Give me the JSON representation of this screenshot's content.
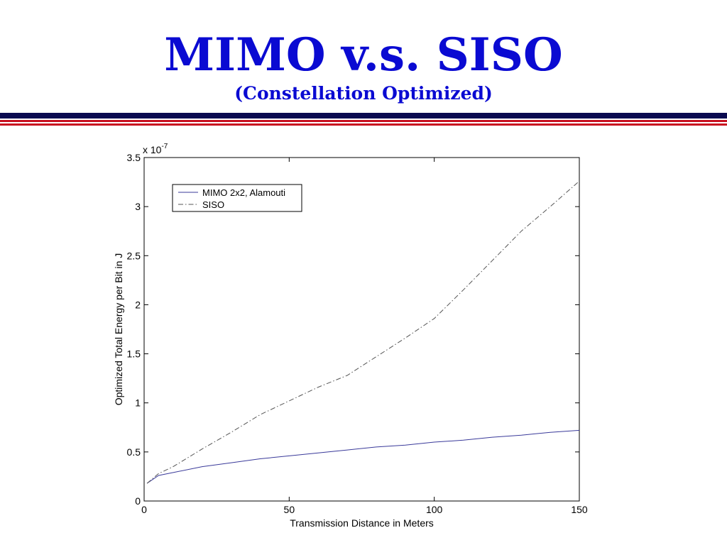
{
  "slide": {
    "title": "MIMO v.s. SISO",
    "subtitle": "(Constellation Optimized)"
  },
  "colors": {
    "title": "#0a0ad2",
    "rule_navy": "#0a0a50",
    "rule_red": "#c81020",
    "mimo_line": "#3a3a9a",
    "siso_line": "#555555"
  },
  "chart_data": {
    "type": "line",
    "xlabel": "Transmission Distance in Meters",
    "ylabel": "Optimized Total Energy per Bit in J",
    "exponent_base": "x 10",
    "exponent_power": "-7",
    "xlim": [
      0,
      150
    ],
    "ylim": [
      0,
      3.5
    ],
    "x_ticks": [
      0,
      50,
      100,
      150
    ],
    "x_tick_labels": [
      "0",
      "50",
      "100",
      "150"
    ],
    "y_ticks": [
      0,
      0.5,
      1,
      1.5,
      2,
      2.5,
      3,
      3.5
    ],
    "y_tick_labels": [
      "0",
      "0.5",
      "1",
      "1.5",
      "2",
      "2.5",
      "3",
      "3.5"
    ],
    "grid": false,
    "legend_position": "top-left",
    "series": [
      {
        "name": "MIMO 2x2, Alamouti",
        "style": "solid",
        "x": [
          1,
          5,
          10,
          20,
          30,
          40,
          50,
          60,
          70,
          80,
          90,
          100,
          110,
          120,
          130,
          140,
          150
        ],
        "y": [
          0.18,
          0.26,
          0.29,
          0.35,
          0.39,
          0.43,
          0.46,
          0.49,
          0.52,
          0.55,
          0.57,
          0.6,
          0.62,
          0.65,
          0.67,
          0.7,
          0.72
        ]
      },
      {
        "name": "SISO",
        "style": "dashdot",
        "x": [
          1,
          5,
          10,
          20,
          30,
          40,
          50,
          60,
          70,
          80,
          90,
          100,
          110,
          120,
          130,
          140,
          150
        ],
        "y": [
          0.18,
          0.28,
          0.35,
          0.53,
          0.7,
          0.88,
          1.02,
          1.16,
          1.28,
          1.47,
          1.66,
          1.86,
          2.15,
          2.45,
          2.75,
          3.0,
          3.26
        ]
      }
    ]
  }
}
